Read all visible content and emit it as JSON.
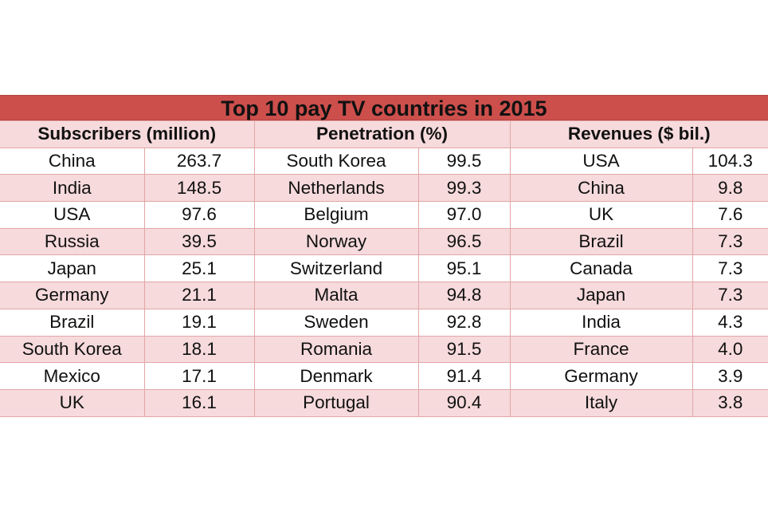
{
  "title": "Top 10 pay TV countries in 2015",
  "headers": [
    "Subscribers (million)",
    "Penetration (%)",
    "Revenues ($ bil.)"
  ],
  "rows": [
    {
      "sub_country": "China",
      "sub_value": "263.7",
      "pen_country": "South Korea",
      "pen_value": "99.5",
      "rev_country": "USA",
      "rev_value": "104.3"
    },
    {
      "sub_country": "India",
      "sub_value": "148.5",
      "pen_country": "Netherlands",
      "pen_value": "99.3",
      "rev_country": "China",
      "rev_value": "9.8"
    },
    {
      "sub_country": "USA",
      "sub_value": "97.6",
      "pen_country": "Belgium",
      "pen_value": "97.0",
      "rev_country": "UK",
      "rev_value": "7.6"
    },
    {
      "sub_country": "Russia",
      "sub_value": "39.5",
      "pen_country": "Norway",
      "pen_value": "96.5",
      "rev_country": "Brazil",
      "rev_value": "7.3"
    },
    {
      "sub_country": "Japan",
      "sub_value": "25.1",
      "pen_country": "Switzerland",
      "pen_value": "95.1",
      "rev_country": "Canada",
      "rev_value": "7.3"
    },
    {
      "sub_country": "Germany",
      "sub_value": "21.1",
      "pen_country": "Malta",
      "pen_value": "94.8",
      "rev_country": "Japan",
      "rev_value": "7.3"
    },
    {
      "sub_country": "Brazil",
      "sub_value": "19.1",
      "pen_country": "Sweden",
      "pen_value": "92.8",
      "rev_country": "India",
      "rev_value": "4.3"
    },
    {
      "sub_country": "South Korea",
      "sub_value": "18.1",
      "pen_country": "Romania",
      "pen_value": "91.5",
      "rev_country": "France",
      "rev_value": "4.0"
    },
    {
      "sub_country": "Mexico",
      "sub_value": "17.1",
      "pen_country": "Denmark",
      "pen_value": "91.4",
      "rev_country": "Germany",
      "rev_value": "3.9"
    },
    {
      "sub_country": "UK",
      "sub_value": "16.1",
      "pen_country": "Portugal",
      "pen_value": "90.4",
      "rev_country": "Italy",
      "rev_value": "3.8"
    }
  ],
  "colors": {
    "title_band": "#cc4f4c",
    "row_tint": "#f6dadc",
    "grid_line": "#e3a6a7"
  }
}
